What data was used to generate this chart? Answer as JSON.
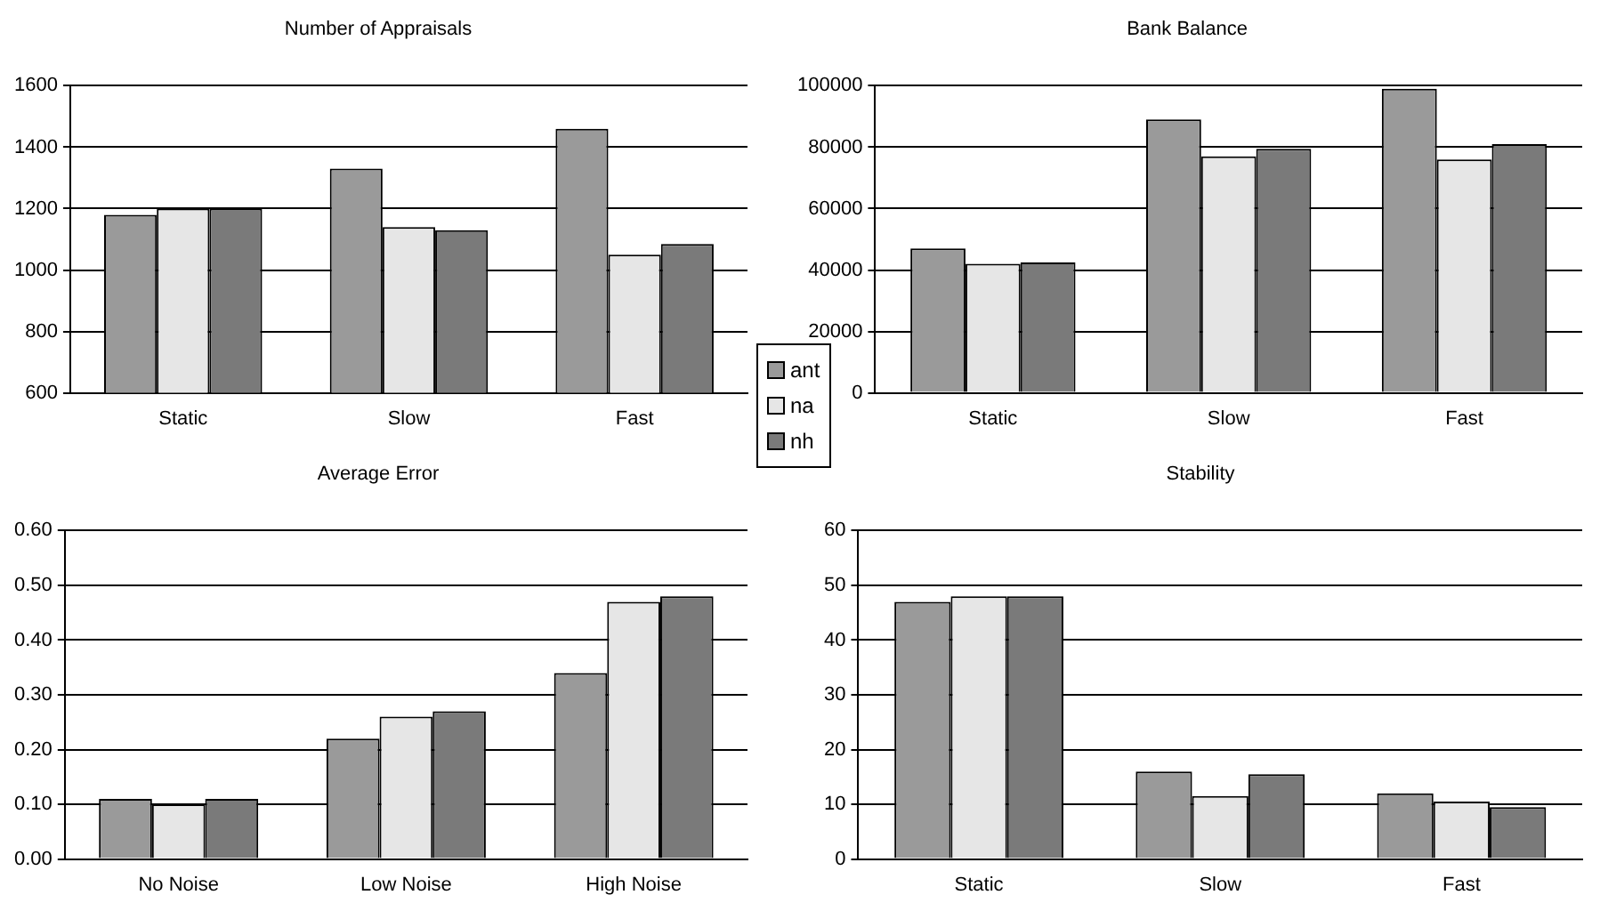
{
  "chart_data": [
    {
      "type": "bar",
      "title": "Number of Appraisals",
      "categories": [
        "Static",
        "Slow",
        "Fast"
      ],
      "series": [
        {
          "name": "ant",
          "color": "#9a9a9a",
          "values": [
            1180,
            1330,
            1460
          ]
        },
        {
          "name": "na",
          "color": "#e6e6e6",
          "values": [
            1200,
            1140,
            1050
          ]
        },
        {
          "name": "nh",
          "color": "#7a7a7a",
          "values": [
            1200,
            1130,
            1085
          ]
        }
      ],
      "ylim": [
        600,
        1600
      ],
      "yticks": [
        600,
        800,
        1000,
        1200,
        1400,
        1600
      ],
      "grid": "y",
      "legend": "right"
    },
    {
      "type": "bar",
      "title": "Bank Balance",
      "categories": [
        "Static",
        "Slow",
        "Fast"
      ],
      "series": [
        {
          "color": "#9a9a9a",
          "values": [
            47000,
            89000,
            99000
          ]
        },
        {
          "color": "#e6e6e6",
          "values": [
            42000,
            77000,
            76000
          ]
        },
        {
          "color": "#7a7a7a",
          "values": [
            42500,
            79500,
            81000
          ]
        }
      ],
      "ylim": [
        0,
        100000
      ],
      "yticks": [
        0,
        20000,
        40000,
        60000,
        80000,
        100000
      ],
      "grid": "y"
    },
    {
      "type": "bar",
      "title": "Average Error",
      "categories": [
        "No Noise",
        "Low Noise",
        "High Noise"
      ],
      "series": [
        {
          "color": "#9a9a9a",
          "values": [
            0.11,
            0.22,
            0.34
          ]
        },
        {
          "color": "#e6e6e6",
          "values": [
            0.1,
            0.26,
            0.47
          ]
        },
        {
          "color": "#7a7a7a",
          "values": [
            0.11,
            0.27,
            0.48
          ]
        }
      ],
      "ylim": [
        0,
        0.6
      ],
      "yticks": [
        {
          "value": 0,
          "label": "0.00"
        },
        {
          "value": 0.1,
          "label": "0.10"
        },
        {
          "value": 0.2,
          "label": "0.20"
        },
        {
          "value": 0.3,
          "label": "0.30"
        },
        {
          "value": 0.4,
          "label": "0.40"
        },
        {
          "value": 0.5,
          "label": "0.50"
        },
        {
          "value": 0.6,
          "label": "0.60"
        }
      ],
      "grid": "y"
    },
    {
      "type": "bar",
      "title": "Stability",
      "categories": [
        "Static",
        "Slow",
        "Fast"
      ],
      "series": [
        {
          "color": "#9a9a9a",
          "values": [
            47,
            16,
            12
          ]
        },
        {
          "color": "#e6e6e6",
          "values": [
            48,
            11.5,
            10.5
          ]
        },
        {
          "color": "#7a7a7a",
          "values": [
            48,
            15.5,
            9.5
          ]
        }
      ],
      "ylim": [
        0,
        60
      ],
      "yticks": [
        0,
        10,
        20,
        30,
        40,
        50,
        60
      ],
      "grid": "y"
    }
  ]
}
